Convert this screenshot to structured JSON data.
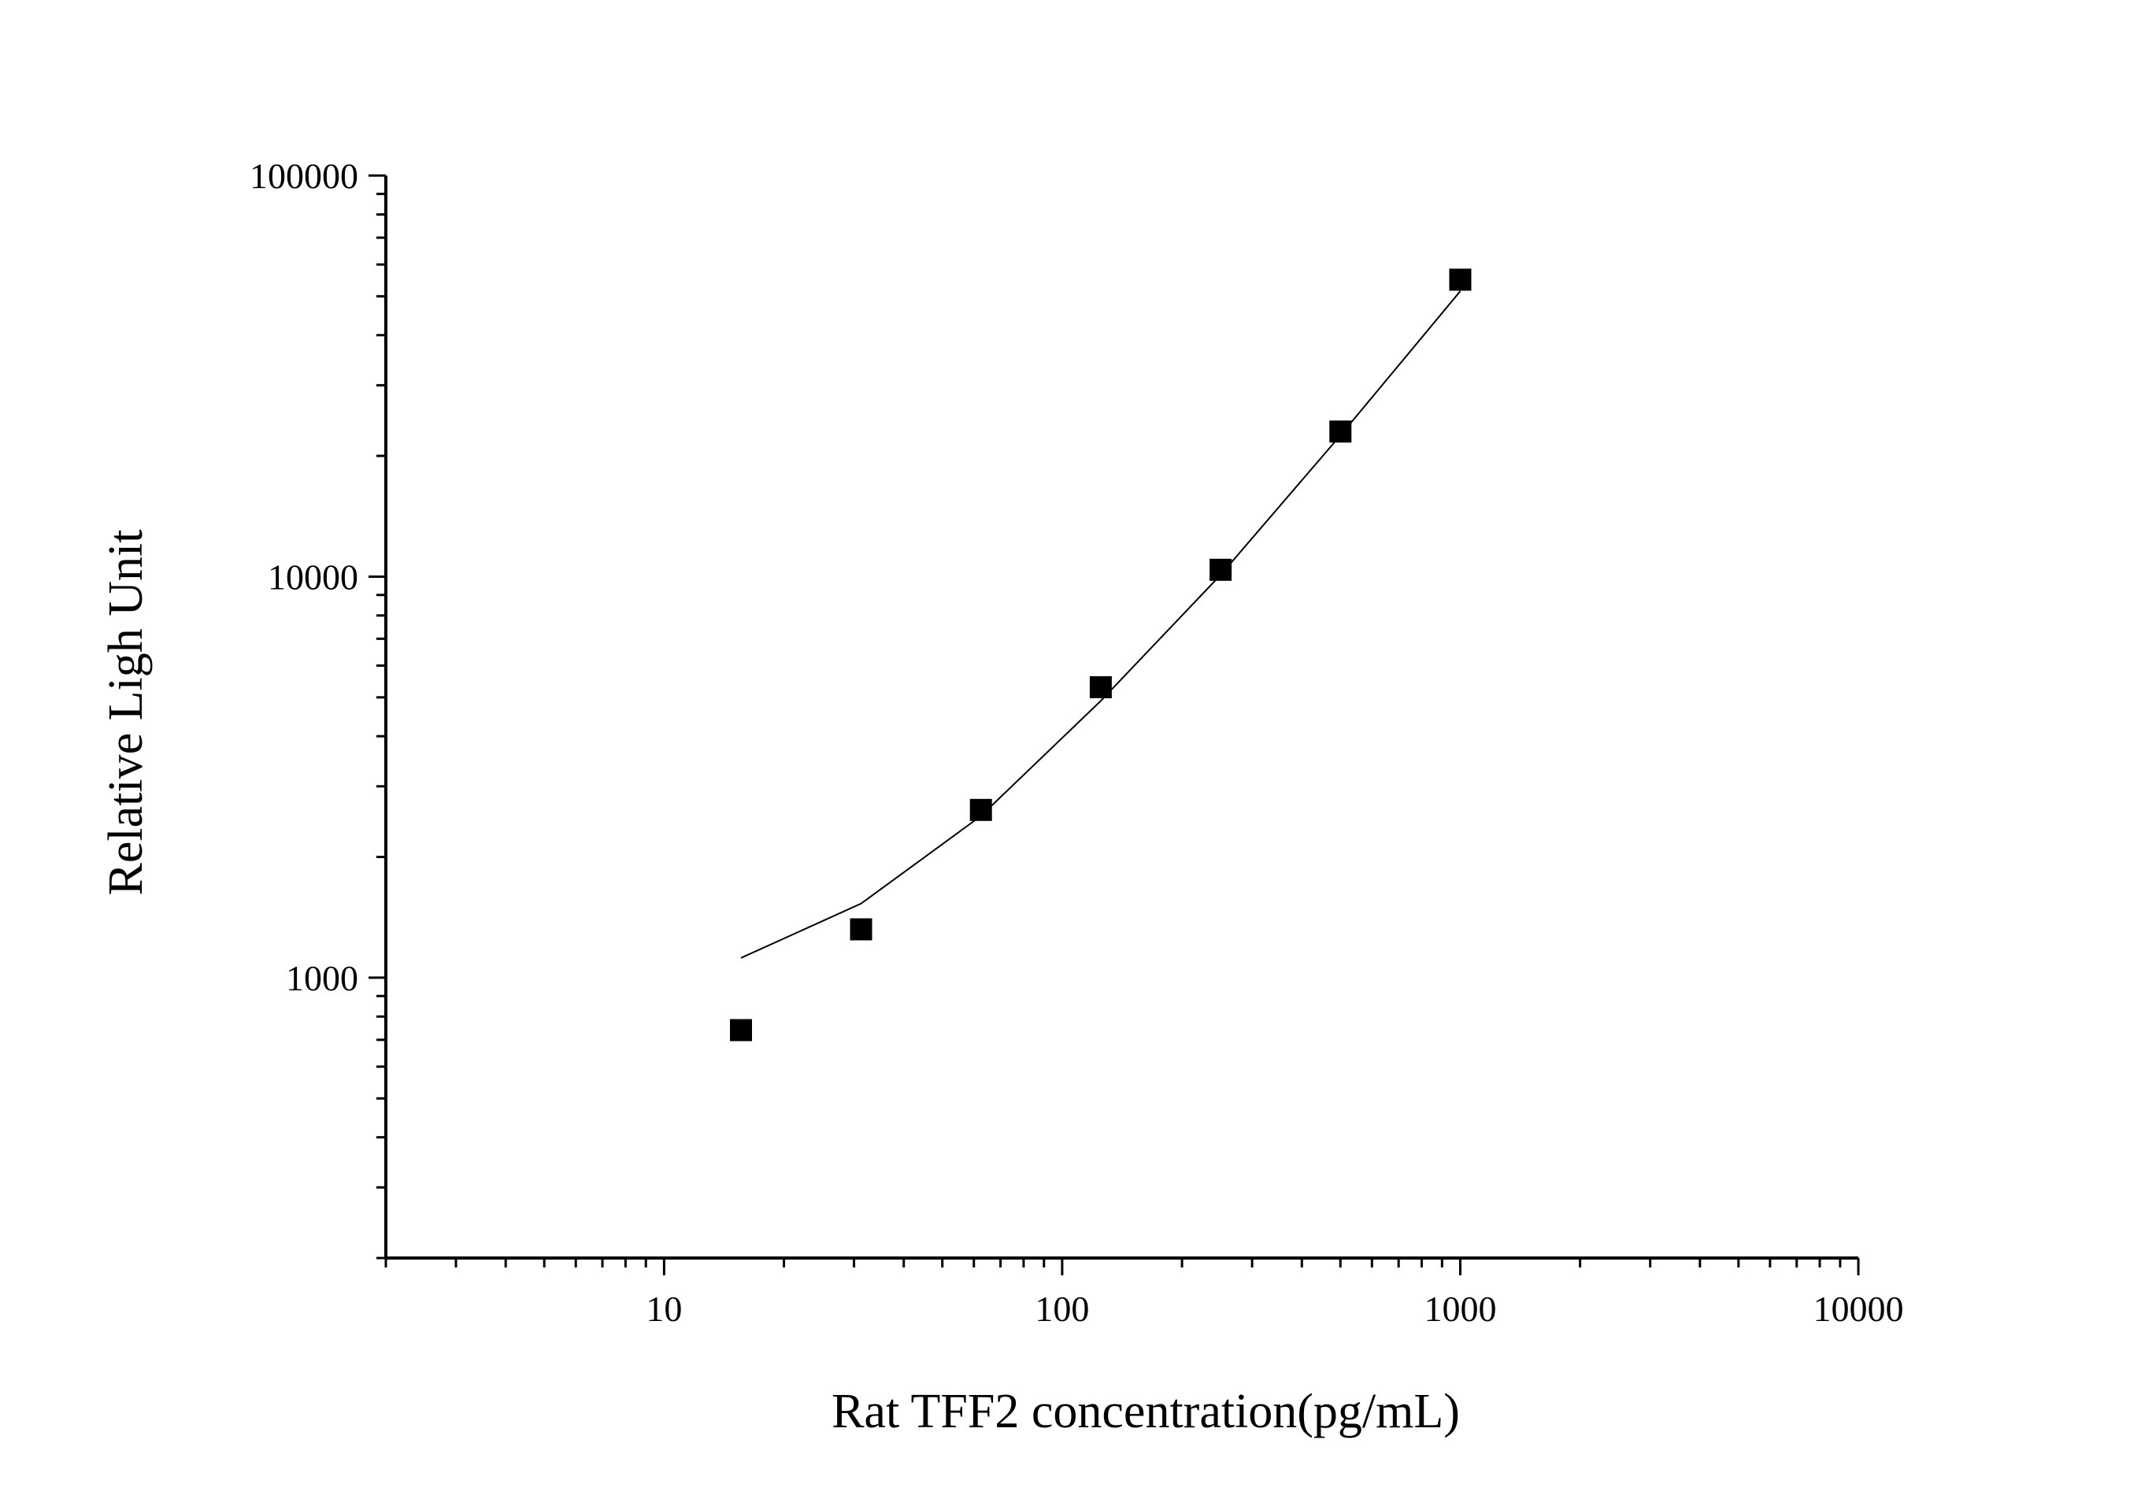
{
  "chart_data": {
    "type": "scatter",
    "xlabel": "Rat TFF2 concentration(pg/mL)",
    "ylabel": "Relative Ligh Unit",
    "xscale": "log",
    "yscale": "log",
    "xlim": [
      2,
      10000
    ],
    "ylim": [
      200,
      100000
    ],
    "xticks": [
      {
        "value": 10,
        "label": "10"
      },
      {
        "value": 100,
        "label": "100"
      },
      {
        "value": 1000,
        "label": "1000"
      },
      {
        "value": 10000,
        "label": "10000"
      }
    ],
    "yticks": [
      {
        "value": 1000,
        "label": "1000"
      },
      {
        "value": 10000,
        "label": "10000"
      },
      {
        "value": 100000,
        "label": "100000"
      }
    ],
    "grid": false,
    "series": [
      {
        "marker": "square",
        "color": "#000000",
        "x": [
          15.6,
          31.25,
          62.5,
          125,
          250,
          500,
          1000
        ],
        "y": [
          740,
          1320,
          2620,
          5300,
          10400,
          23000,
          55000
        ]
      }
    ],
    "fit_line": {
      "color": "#000000",
      "x": [
        15.6,
        31.25,
        62.5,
        125,
        250,
        500,
        1000
      ],
      "y": [
        1120,
        1530,
        2530,
        4900,
        10100,
        22500,
        51500
      ]
    }
  }
}
